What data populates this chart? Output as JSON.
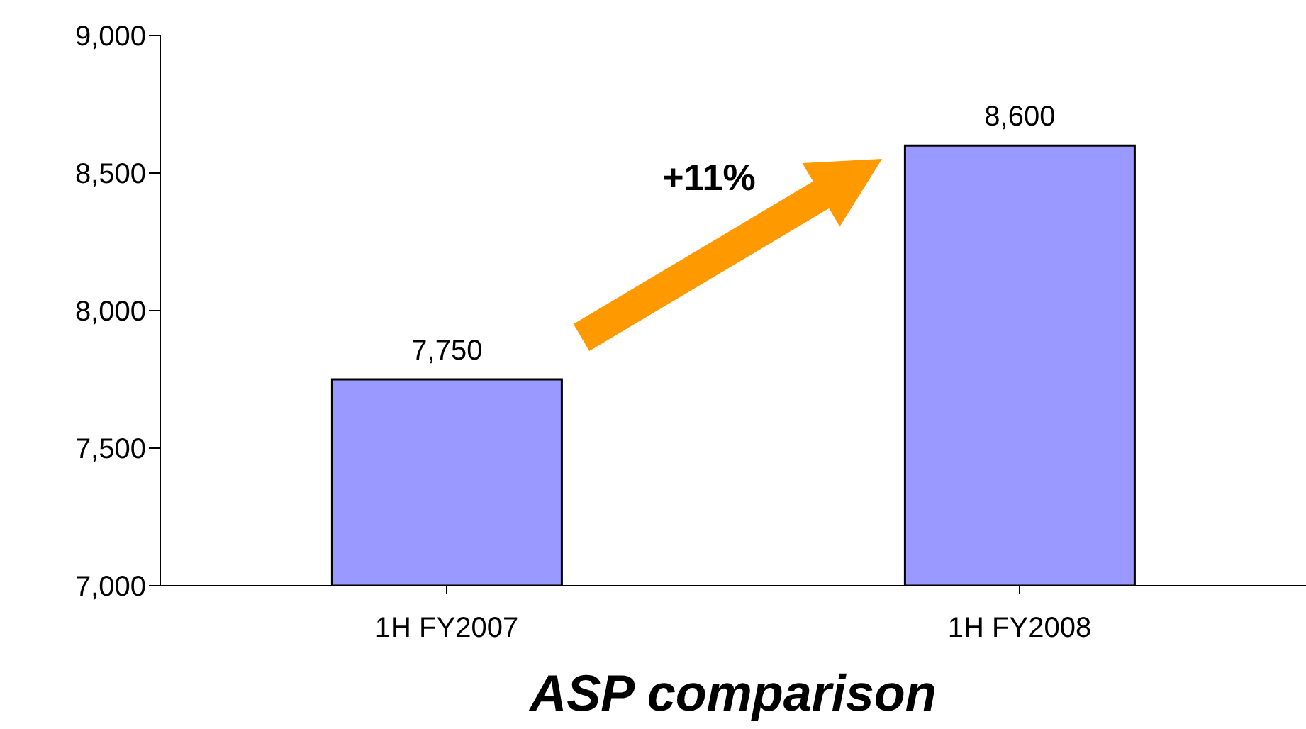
{
  "chart_data": {
    "type": "bar",
    "title": "ASP comparison",
    "categories": [
      "1H FY2007",
      "1H FY2008"
    ],
    "values": [
      7750,
      8600
    ],
    "color": "#9999ff",
    "value_labels": [
      "7,750",
      "8,600"
    ],
    "ylim": [
      7000,
      9000
    ],
    "yticks": [
      {
        "value": 7000,
        "label": "7,000"
      },
      {
        "value": 7500,
        "label": "7,500"
      },
      {
        "value": 8000,
        "label": "8,000"
      },
      {
        "value": 8500,
        "label": "8,500"
      },
      {
        "value": 9000,
        "label": "9,000"
      }
    ],
    "grid": false,
    "legend": false,
    "annotations": [
      "+11%"
    ]
  }
}
